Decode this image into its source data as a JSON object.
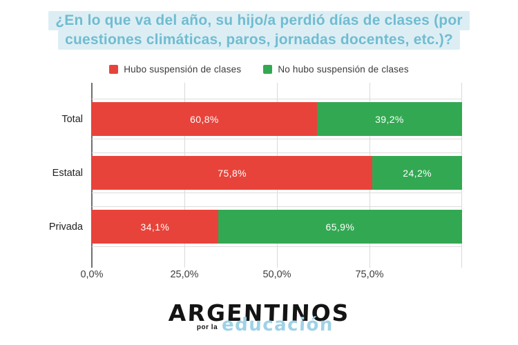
{
  "title": {
    "line1": "¿En lo que va del año, su hijo/a perdió días de clases (por",
    "line2": "cuestiones climáticas, paros, jornadas docentes, etc.)?"
  },
  "legend": [
    {
      "label": "Hubo suspensión de clases",
      "color": "#e8433a"
    },
    {
      "label": "No hubo suspensión de clases",
      "color": "#33a852"
    }
  ],
  "chart_data": {
    "type": "bar",
    "orientation": "horizontal",
    "stacked": true,
    "categories": [
      "Total",
      "Estatal",
      "Privada"
    ],
    "series": [
      {
        "name": "Hubo suspensión de clases",
        "color": "#e8433a",
        "values": [
          60.8,
          75.8,
          34.1
        ],
        "labels": [
          "60,8%",
          "75,8%",
          "34,1%"
        ]
      },
      {
        "name": "No hubo suspensión de clases",
        "color": "#33a852",
        "values": [
          39.2,
          24.2,
          65.9
        ],
        "labels": [
          "39,2%",
          "24,2%",
          "65,9%"
        ]
      }
    ],
    "x_ticks": [
      "0,0%",
      "25,0%",
      "50,0%",
      "75,0%"
    ],
    "xlim": [
      0,
      100
    ],
    "grid": true,
    "legend_position": "top"
  },
  "footer": {
    "brand_top": "ARGENTINOS",
    "brand_mid": "por la",
    "brand_bottom": "educación"
  },
  "colors": {
    "title_text": "#70bcd1",
    "title_highlight": "#dceef4",
    "red": "#e8433a",
    "green": "#33a852",
    "gridline": "#d9d9d9",
    "axis_line": "#6f6f6f",
    "background": "#ffffff",
    "brand_blue": "#9fd2e6"
  }
}
